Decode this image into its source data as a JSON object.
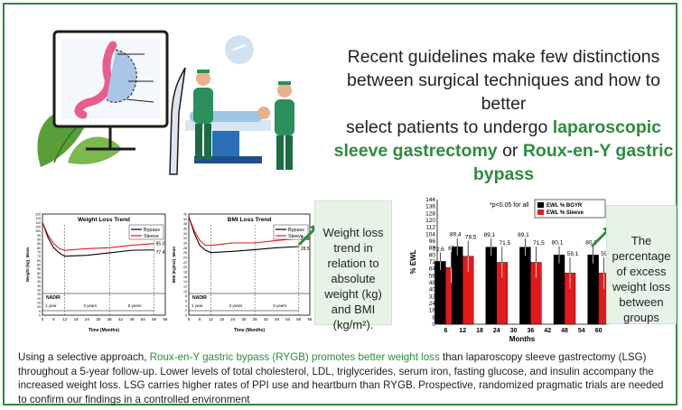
{
  "headline": {
    "line1": "Recent guidelines make few distinctions",
    "line2": "between surgical techniques and how to better",
    "line3a": "select patients to undergo ",
    "hl1": "laparoscopic sleeve gastrectomy",
    "mid": " or ",
    "hl2": "Roux-en-Y gastric bypass"
  },
  "notes": {
    "weight_note_a": "Weight loss trend in relation to absolute weight (kg) and BMI",
    "weight_note_b": "(kg/m²).",
    "ewl_note": "The percentage of excess weight loss between groups"
  },
  "summary": {
    "pre": "Using a selective approach, ",
    "hl": "Roux-en-Y gastric bypass (RYGB) promotes better weight loss",
    "post": " than laparoscopy sleeve gastrectomy (LSG) throughout a 5-year follow-up. Lower levels of total cholesterol, LDL, triglycerides, serum iron, fasting glucose, and insulin accompany the increased weight loss. LSG carries higher rates of PPI use and heartburn than RYGB. Prospective, randomized pragmatic trials are needed to confirm our findings in a controlled environment"
  },
  "colors": {
    "accent": "#2e8b3e",
    "bypass": "#000000",
    "sleeve": "#e3191c"
  },
  "chart_data": [
    {
      "type": "line",
      "title": "Weight Loss Trend",
      "ylabel": "Weight (kg)_Mean",
      "xlabel": "Time (Months)",
      "ylim": [
        0,
        120
      ],
      "yticks": [
        0,
        5,
        10,
        15,
        20,
        25,
        30,
        35,
        40,
        45,
        50,
        55,
        60,
        65,
        70,
        75,
        80,
        85,
        90,
        95,
        100,
        105,
        110,
        115,
        120
      ],
      "xticks": [
        0,
        6,
        12,
        18,
        24,
        30,
        36,
        42,
        48,
        54,
        60,
        66
      ],
      "xlim": [
        0,
        66
      ],
      "series": [
        {
          "name": "Bypass",
          "x": [
            0,
            3,
            6,
            9,
            12,
            24,
            36,
            48,
            60
          ],
          "y": [
            110,
            92,
            80,
            74,
            70,
            71,
            74,
            77,
            77.4
          ]
        },
        {
          "name": "Sleeve",
          "x": [
            0,
            3,
            6,
            9,
            12,
            24,
            36,
            48,
            60
          ],
          "y": [
            110,
            95,
            85,
            79,
            77,
            79,
            80,
            83,
            85.0
          ]
        }
      ],
      "end_labels": [
        "85.0",
        "77.4"
      ],
      "annotations": [
        "NADIR",
        "1 year",
        "3 years",
        "5 years"
      ]
    },
    {
      "type": "line",
      "title": "BMI Loss Trend",
      "ylabel": "BMI (Kg/m2)_Mean",
      "xlabel": "Time (Months)",
      "ylim": [
        0,
        42
      ],
      "yticks": [
        0,
        2,
        4,
        6,
        8,
        10,
        12,
        14,
        16,
        18,
        20,
        22,
        24,
        26,
        28,
        30,
        32,
        34,
        36,
        38,
        40,
        42
      ],
      "xticks": [
        0,
        6,
        12,
        18,
        24,
        30,
        36,
        42,
        48,
        54,
        60,
        66
      ],
      "xlim": [
        0,
        66
      ],
      "series": [
        {
          "name": "Bypass",
          "x": [
            0,
            3,
            6,
            9,
            12,
            24,
            36,
            48,
            60
          ],
          "y": [
            41,
            34,
            29,
            27,
            26,
            26.5,
            27.2,
            28,
            28.5
          ]
        },
        {
          "name": "Sleeve",
          "x": [
            0,
            3,
            6,
            9,
            12,
            24,
            36,
            48,
            60
          ],
          "y": [
            41,
            35,
            31,
            29,
            29,
            30,
            30,
            31,
            31.9
          ]
        }
      ],
      "end_labels": [
        "31.9",
        "28.5"
      ],
      "annotations": [
        "NADIR",
        "1 year",
        "3 years",
        "5 years"
      ]
    },
    {
      "type": "bar",
      "title": "*p<0.05 for all",
      "ylabel": "% EWL",
      "xlabel": "Months",
      "ylim": [
        0,
        144
      ],
      "yticks": [
        0,
        8,
        16,
        24,
        32,
        40,
        48,
        56,
        64,
        72,
        80,
        88,
        96,
        104,
        112,
        120,
        128,
        136,
        144
      ],
      "xticks": [
        6,
        12,
        18,
        24,
        30,
        36,
        42,
        48,
        54,
        60
      ],
      "categories": [
        "6",
        "12",
        "24",
        "36",
        "48",
        "60"
      ],
      "series": [
        {
          "name": "EWL % BGYR",
          "values": [
            72.6,
            89.4,
            89.1,
            89.1,
            80.1,
            80.1
          ]
        },
        {
          "name": "EWL % Sleeve",
          "values": [
            65.6,
            78.5,
            71.5,
            71.5,
            59.1,
            59.1
          ]
        }
      ],
      "labels_bgyr": [
        "72,6",
        "89,4",
        "89,1",
        "89,1",
        "80,1",
        "80,1"
      ],
      "labels_sleeve": [
        "65,6",
        "78,5",
        "71,5",
        "71,5",
        "59,1",
        "59,1"
      ]
    }
  ]
}
